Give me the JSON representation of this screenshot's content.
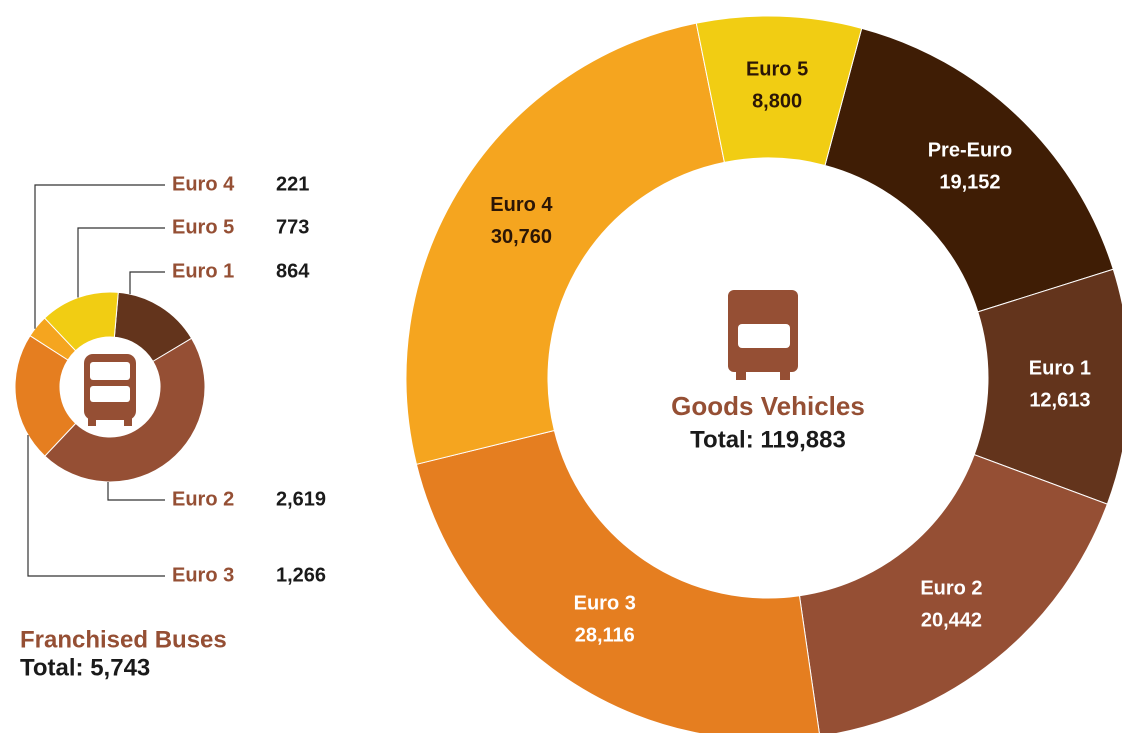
{
  "chart_data": [
    {
      "type": "donut",
      "title": "Franchised Buses",
      "subtitle": "Total: 5,743",
      "categories": [
        "Euro 1",
        "Euro 2",
        "Euro 3",
        "Euro 4",
        "Euro 5"
      ],
      "values": [
        864,
        2619,
        1266,
        221,
        773
      ],
      "value_labels": [
        "864",
        "2,619",
        "1,266",
        "221",
        "773"
      ],
      "colors": [
        "#63341c",
        "#954f34",
        "#e57e20",
        "#f5a51f",
        "#f1cd13"
      ]
    },
    {
      "type": "donut",
      "title": "Goods Vehicles",
      "subtitle": "Total: 119,883",
      "categories": [
        "Pre-Euro",
        "Euro 1",
        "Euro 2",
        "Euro 3",
        "Euro 4",
        "Euro 5"
      ],
      "values": [
        19152,
        12613,
        20442,
        28116,
        30760,
        8800
      ],
      "value_labels": [
        "19,152",
        "12,613",
        "20,442",
        "28,116",
        "30,760",
        "8,800"
      ],
      "colors": [
        "#3f1d05",
        "#63341c",
        "#954f34",
        "#e57e20",
        "#f5a51f",
        "#f1cd13"
      ]
    }
  ]
}
